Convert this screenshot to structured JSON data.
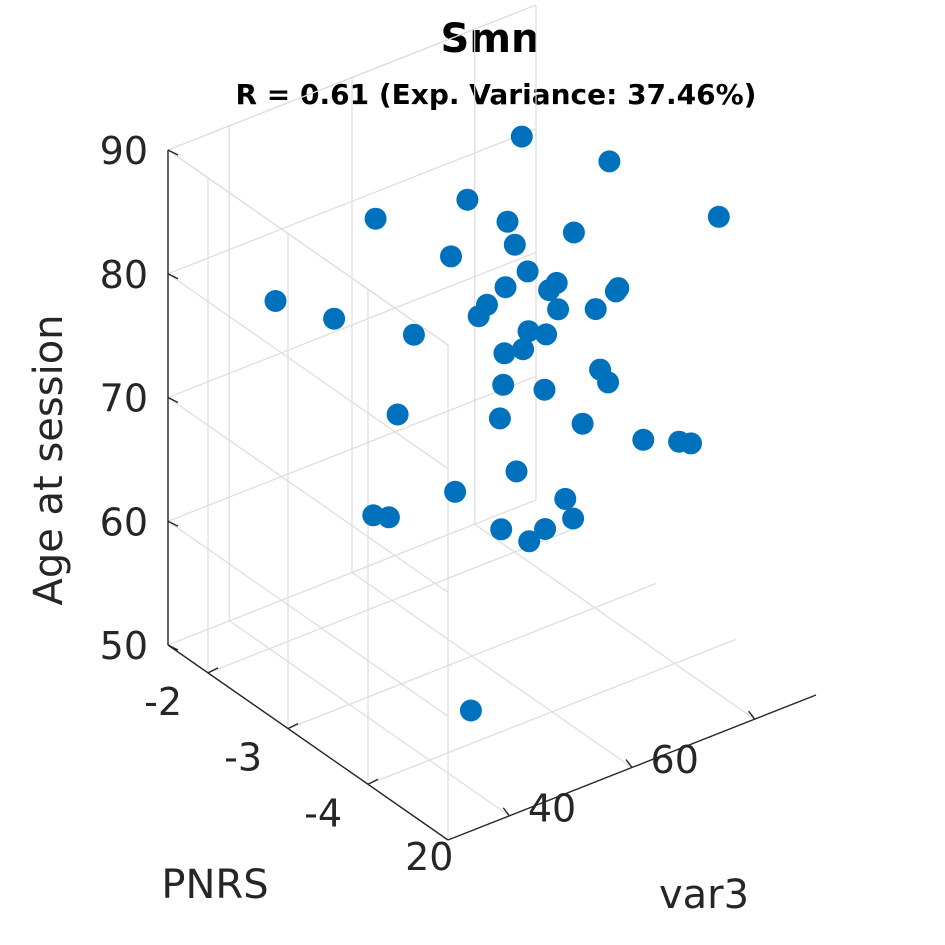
{
  "title": "Smn",
  "subtitle": "R = 0.61 (Exp. Variance: 37.46%)",
  "chart_data": {
    "type": "scatter3d",
    "xlabel": "var3",
    "ylabel": "PNRS",
    "zlabel": "Age at session",
    "xlim": [
      10,
      70
    ],
    "ylim": [
      -5,
      -1.5
    ],
    "zlim": [
      50,
      90
    ],
    "xticks": [
      20,
      40,
      60
    ],
    "yticks": [
      -2,
      -3,
      -4
    ],
    "zticks": [
      50,
      60,
      70,
      80,
      90
    ],
    "grid": true,
    "marker_color": "#0072BD",
    "points": [
      {
        "x": 64.1,
        "y": -1.6,
        "z": 93.0
      },
      {
        "x": 43.3,
        "y": -3.37,
        "z": 93.0
      },
      {
        "x": 35.6,
        "y": -3.28,
        "z": 89.0
      },
      {
        "x": 28.2,
        "y": -2.7,
        "z": 86.3
      },
      {
        "x": 43.7,
        "y": -3.16,
        "z": 85.1
      },
      {
        "x": 35.4,
        "y": -3.09,
        "z": 83.6
      },
      {
        "x": 51.4,
        "y": -3.4,
        "z": 83.8
      },
      {
        "x": 42.8,
        "y": -3.48,
        "z": 82.7
      },
      {
        "x": 47.5,
        "y": -2.96,
        "z": 81.6
      },
      {
        "x": 42.2,
        "y": -3.25,
        "z": 80.5
      },
      {
        "x": 61.1,
        "y": -3.1,
        "z": 86.3
      },
      {
        "x": 66.8,
        "y": -4.03,
        "z": 84.9
      },
      {
        "x": 21.0,
        "y": -2.0,
        "z": 77.9
      },
      {
        "x": 23.9,
        "y": -2.51,
        "z": 78.2
      },
      {
        "x": 37.1,
        "y": -3.41,
        "z": 80.8
      },
      {
        "x": 36.0,
        "y": -3.39,
        "z": 80.0
      },
      {
        "x": 45.6,
        "y": -3.63,
        "z": 81.9
      },
      {
        "x": 44.1,
        "y": -3.65,
        "z": 81.7
      },
      {
        "x": 52.9,
        "y": -3.84,
        "z": 81.0
      },
      {
        "x": 51.6,
        "y": -3.91,
        "z": 81.3
      },
      {
        "x": 50.0,
        "y": -3.78,
        "z": 79.6
      },
      {
        "x": 45.3,
        "y": -3.67,
        "z": 80.0
      },
      {
        "x": 44.0,
        "y": -3.62,
        "z": 78.0
      },
      {
        "x": 38.5,
        "y": -3.52,
        "z": 77.1
      },
      {
        "x": 40.5,
        "y": -3.6,
        "z": 77.4
      },
      {
        "x": 41.9,
        "y": -3.56,
        "z": 78.4
      },
      {
        "x": 30.0,
        "y": -3.04,
        "z": 78.1
      },
      {
        "x": 38.9,
        "y": -3.99,
        "z": 76.2
      },
      {
        "x": 37.0,
        "y": -3.62,
        "z": 75.3
      },
      {
        "x": 46.8,
        "y": -4.18,
        "z": 76.1
      },
      {
        "x": 46.4,
        "y": -4.11,
        "z": 76.9
      },
      {
        "x": 52.8,
        "y": -4.16,
        "z": 70.2
      },
      {
        "x": 55.5,
        "y": -4.4,
        "z": 70.6
      },
      {
        "x": 31.0,
        "y": -2.76,
        "z": 70.2
      },
      {
        "x": 40.5,
        "y": -3.31,
        "z": 70.5
      },
      {
        "x": 40.6,
        "y": -3.51,
        "z": 67.1
      },
      {
        "x": 46.3,
        "y": -3.9,
        "z": 71.6
      },
      {
        "x": 33.2,
        "y": -3.31,
        "z": 66.0
      },
      {
        "x": 42.0,
        "y": -3.76,
        "z": 63.3
      },
      {
        "x": 44.9,
        "y": -3.79,
        "z": 65.3
      },
      {
        "x": 45.0,
        "y": -3.88,
        "z": 64.1
      },
      {
        "x": 39.8,
        "y": -3.73,
        "z": 62.6
      },
      {
        "x": 37.2,
        "y": -3.58,
        "z": 63.4
      },
      {
        "x": 26.9,
        "y": -2.77,
        "z": 62.9
      },
      {
        "x": 28.4,
        "y": -2.85,
        "z": 62.8
      },
      {
        "x": 62.4,
        "y": -4.02,
        "z": 67.4
      },
      {
        "x": 27.3,
        "y": -3.96,
        "z": 52.4
      }
    ]
  }
}
